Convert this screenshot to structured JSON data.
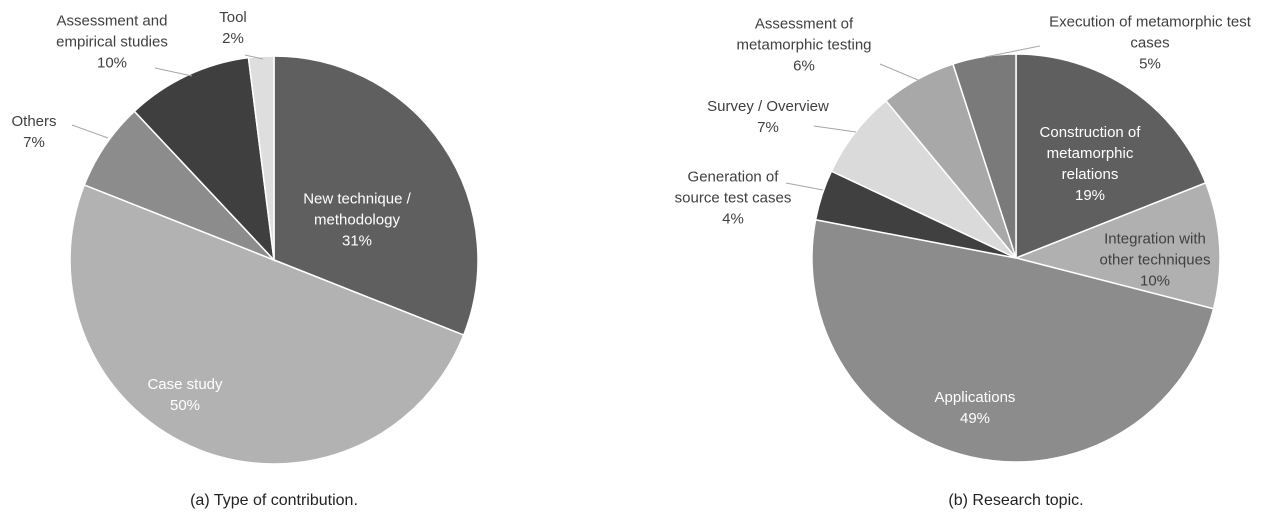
{
  "chart_data": [
    {
      "type": "pie",
      "title": "(a) Type of contribution.",
      "categories": [
        "New technique / methodology",
        "Case study",
        "Others",
        "Assessment and empirical studies",
        "Tool"
      ],
      "values": [
        31,
        50,
        7,
        10,
        2
      ],
      "value_labels": [
        "31%",
        "50%",
        "7%",
        "10%",
        "2%"
      ],
      "colors": [
        "#5f5f5f",
        "#b2b2b2",
        "#8c8c8c",
        "#3f3f3f",
        "#dedede"
      ]
    },
    {
      "type": "pie",
      "title": "(b) Research topic.",
      "categories": [
        "Construction of metamorphic relations",
        "Integration with other techniques",
        "Applications",
        "Generation of source test cases",
        "Survey / Overview",
        "Assessment of metamorphic testing",
        "Execution of metamorphic test cases"
      ],
      "values": [
        19,
        10,
        49,
        4,
        7,
        6,
        5
      ],
      "value_labels": [
        "19%",
        "10%",
        "49%",
        "4%",
        "7%",
        "6%",
        "5%"
      ],
      "colors": [
        "#5f5f5f",
        "#b0b0b0",
        "#8c8c8c",
        "#404040",
        "#dadada",
        "#a8a8a8",
        "#7a7a7a"
      ]
    }
  ]
}
